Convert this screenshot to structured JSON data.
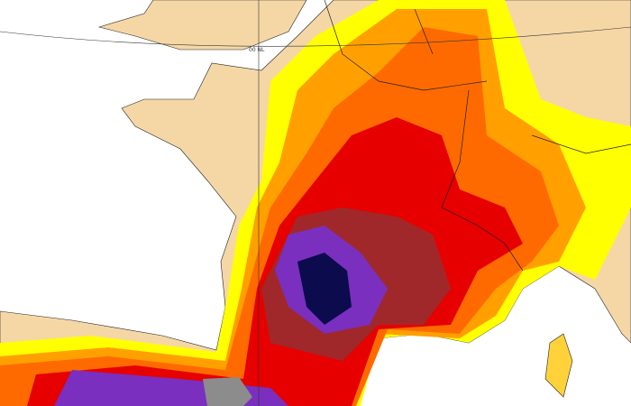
{
  "map": {
    "label": "00 NL"
  }
}
